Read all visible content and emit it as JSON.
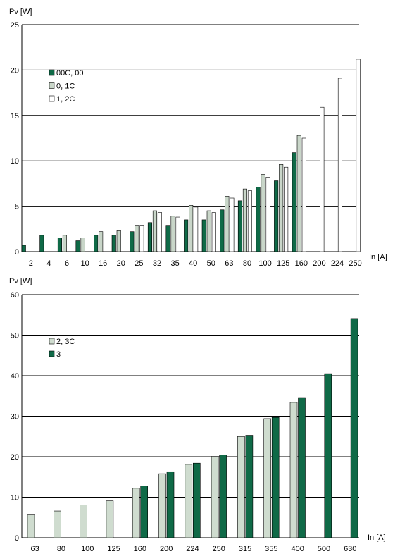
{
  "chart_data": [
    {
      "type": "bar",
      "ylabel": "Pv [W]",
      "xlabel": "In [A]",
      "ylim": [
        0,
        25
      ],
      "yticks": [
        0,
        5,
        10,
        15,
        20,
        25
      ],
      "grid": true,
      "legend_position": "top-left",
      "categories": [
        "2",
        "4",
        "6",
        "10",
        "16",
        "20",
        "25",
        "32",
        "35",
        "40",
        "50",
        "63",
        "80",
        "100",
        "125",
        "160",
        "200",
        "224",
        "250"
      ],
      "series": [
        {
          "name": "00C, 00",
          "color": "#0f6a47",
          "values": [
            0.7,
            1.8,
            1.5,
            1.2,
            1.8,
            1.8,
            2.2,
            3.2,
            2.9,
            3.5,
            3.5,
            4.6,
            5.6,
            7.1,
            7.8,
            10.9,
            null,
            null,
            null
          ]
        },
        {
          "name": "0, 1C",
          "color": "#c9d6c9",
          "values": [
            null,
            null,
            1.8,
            1.5,
            2.2,
            2.3,
            2.9,
            4.5,
            3.9,
            5.1,
            4.5,
            6.1,
            6.9,
            8.5,
            9.6,
            12.8,
            null,
            null,
            null
          ]
        },
        {
          "name": "1, 2C",
          "color": "#ffffff",
          "values": [
            null,
            null,
            null,
            null,
            null,
            null,
            2.9,
            4.3,
            3.8,
            4.9,
            4.3,
            5.9,
            6.7,
            8.2,
            9.3,
            12.5,
            15.9,
            19.1,
            21.2
          ]
        }
      ]
    },
    {
      "type": "bar",
      "ylabel": "Pv [W]",
      "xlabel": "In [A]",
      "ylim": [
        0,
        60
      ],
      "yticks": [
        0,
        10,
        20,
        30,
        40,
        50,
        60
      ],
      "grid": true,
      "legend_position": "top-left",
      "categories": [
        "63",
        "80",
        "100",
        "125",
        "160",
        "200",
        "224",
        "250",
        "315",
        "355",
        "400",
        "500",
        "630"
      ],
      "series": [
        {
          "name": "2, 3C",
          "color": "#cfdccf",
          "values": [
            5.8,
            6.6,
            8.1,
            9.1,
            12.2,
            15.8,
            18.1,
            20.1,
            25.0,
            29.4,
            33.4,
            null,
            null
          ]
        },
        {
          "name": "3",
          "color": "#0f6a47",
          "values": [
            null,
            null,
            null,
            null,
            12.8,
            16.3,
            18.4,
            20.4,
            25.3,
            29.7,
            34.6,
            40.5,
            54.1
          ]
        }
      ]
    }
  ]
}
